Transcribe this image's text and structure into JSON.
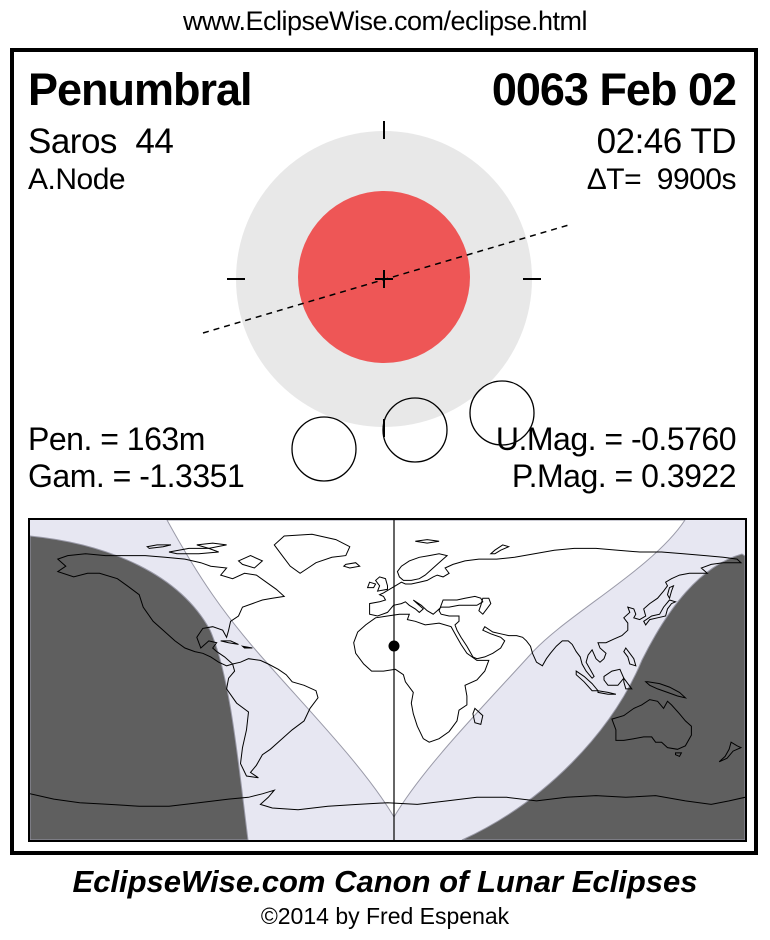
{
  "header": {
    "url": "www.EclipseWise.com/eclipse.html"
  },
  "card": {
    "type": "Penumbral",
    "date": "0063 Feb 02",
    "saros": "Saros  44",
    "time": "02:46 TD",
    "node": "A.Node",
    "delta_t": "ΔT=  9900s",
    "stats": {
      "pen": "Pen. = 163m",
      "gam": "Gam. = -1.3351",
      "umag": "U.Mag. = -0.5760",
      "pmag": "P.Mag. = 0.3922"
    }
  },
  "diagram": {
    "penumbra_duration_min": 163,
    "gamma": -1.3351,
    "umbral_magnitude": -0.576,
    "penumbral_magnitude": 0.3922,
    "saros_number": 44,
    "node_type": "Ascending",
    "greatest_eclipse": "02:46 TD"
  },
  "colors": {
    "umbra": "#ee5656",
    "penumbra": "#e8e8e8",
    "map_dark": "#5f5f5f",
    "map_light": "#e7e7f2",
    "map_visible": "#ffffff",
    "ink": "#000000"
  },
  "footer": {
    "title": "EclipseWise.com Canon of Lunar Eclipses",
    "copyright": "©2014 by Fred Espenak"
  }
}
